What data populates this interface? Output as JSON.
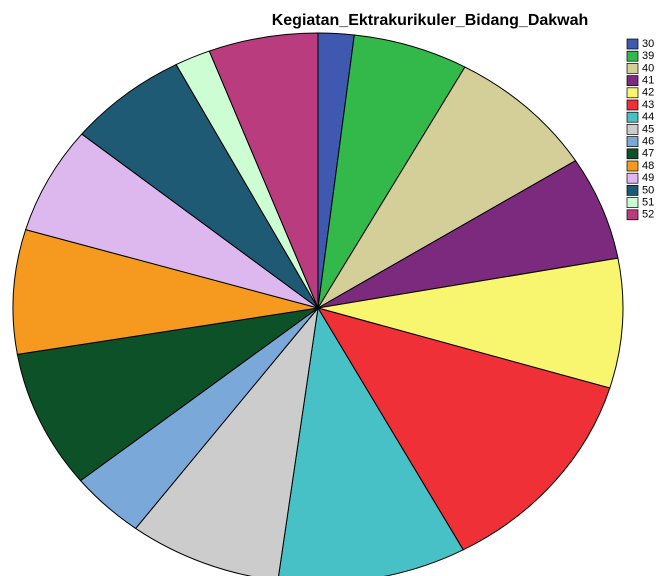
{
  "chart_data": {
    "type": "pie",
    "title": "Kegiatan_Ektrakurikuler_Bidang_Dakwah",
    "categories": [
      "30",
      "39",
      "40",
      "41",
      "42",
      "43",
      "44",
      "45",
      "46",
      "47",
      "48",
      "49",
      "50",
      "51",
      "52"
    ],
    "values": [
      1.9,
      6.1,
      8,
      6.1,
      7.6,
      12.4,
      10,
      8.1,
      4,
      8.1,
      7.3,
      6.3,
      6.4,
      1.9,
      5.8
    ],
    "colors": [
      "#3f58b0",
      "#33b84a",
      "#d4cf99",
      "#7b2a7e",
      "#f8f56f",
      "#ef3036",
      "#48c1c6",
      "#cccccc",
      "#7aa8d8",
      "#0d5129",
      "#f59a1f",
      "#dcb8ef",
      "#1e5a74",
      "#cdfdd3",
      "#b93c7e"
    ],
    "legend": "right"
  }
}
